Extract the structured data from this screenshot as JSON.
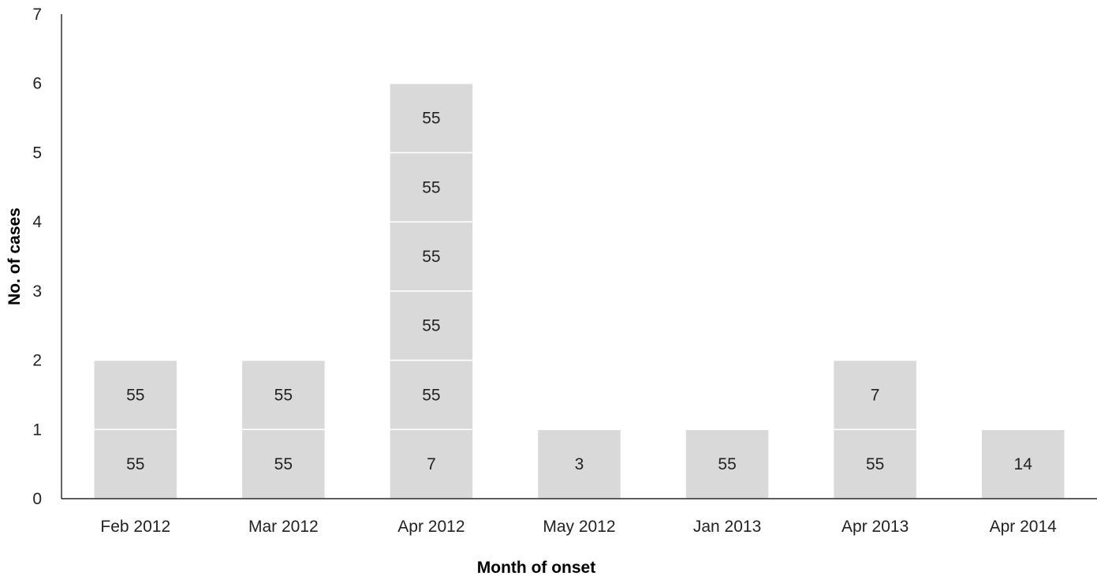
{
  "chart_data": {
    "type": "bar",
    "stacked": true,
    "xlabel": "Month of onset",
    "ylabel": "No. of cases",
    "ylim": [
      0,
      7
    ],
    "yticks": [
      0,
      1,
      2,
      3,
      4,
      5,
      6,
      7
    ],
    "grid": false,
    "categories": [
      "Feb 2012",
      "Mar 2012",
      "Apr 2012",
      "May 2012",
      "Jan 2013",
      "Apr 2013",
      "Apr 2014"
    ],
    "values": [
      2,
      2,
      6,
      1,
      1,
      2,
      1
    ],
    "cell_labels": [
      [
        "55",
        "55"
      ],
      [
        "55",
        "55"
      ],
      [
        "7",
        "55",
        "55",
        "55",
        "55",
        "55"
      ],
      [
        "3"
      ],
      [
        "55"
      ],
      [
        "55",
        "7"
      ],
      [
        "14"
      ]
    ],
    "colors": {
      "bar": "#d9d9d9",
      "separator": "#ffffff",
      "axis": "#000000"
    }
  }
}
